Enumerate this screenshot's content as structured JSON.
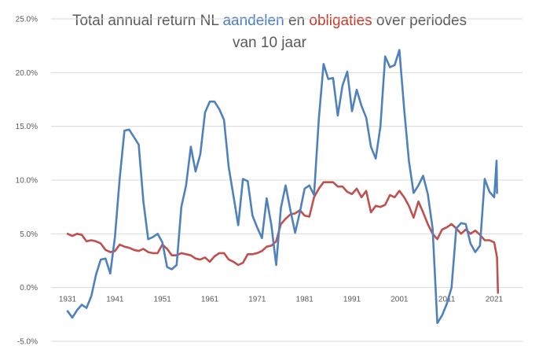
{
  "title": {
    "part1": "Total annual return NL ",
    "series1_word": "aandelen",
    "part2": " en ",
    "series2_word": "obligaties",
    "part3": " over periodes",
    "line2": "van 10 jaar"
  },
  "colors": {
    "aandelen": "#4f81bd",
    "obligaties": "#c0504d",
    "grid": "#d9d9d9",
    "axis_text": "#595959"
  },
  "chart_data": {
    "type": "line",
    "title": "Total annual return NL aandelen en obligaties over periodes van 10 jaar",
    "xlabel": "",
    "ylabel": "",
    "xlim": [
      1931,
      2021
    ],
    "ylim": [
      -5,
      25
    ],
    "grid": true,
    "y_ticks": [
      {
        "value": -5,
        "label": "-5.0%"
      },
      {
        "value": 0,
        "label": "0.0%"
      },
      {
        "value": 5,
        "label": "5.0%"
      },
      {
        "value": 10,
        "label": "10.0%"
      },
      {
        "value": 15,
        "label": "15.0%"
      },
      {
        "value": 20,
        "label": "20.0%"
      },
      {
        "value": 25,
        "label": "25.0%"
      }
    ],
    "x_ticks": [
      {
        "value": 1931,
        "label": "1931"
      },
      {
        "value": 1941,
        "label": "1941"
      },
      {
        "value": 1951,
        "label": "1951"
      },
      {
        "value": 1961,
        "label": "1961"
      },
      {
        "value": 1971,
        "label": "1971"
      },
      {
        "value": 1981,
        "label": "1981"
      },
      {
        "value": 1991,
        "label": "1991"
      },
      {
        "value": 2001,
        "label": "2001"
      },
      {
        "value": 2011,
        "label": "2011"
      },
      {
        "value": 2021,
        "label": "2021"
      }
    ],
    "series": [
      {
        "name": "aandelen",
        "points": [
          [
            1931,
            -2.2
          ],
          [
            1932,
            -2.8
          ],
          [
            1933,
            -2.1
          ],
          [
            1934,
            -1.6
          ],
          [
            1935,
            -1.9
          ],
          [
            1936,
            -0.8
          ],
          [
            1937,
            1.2
          ],
          [
            1938,
            2.6
          ],
          [
            1939,
            2.7
          ],
          [
            1940,
            1.3
          ],
          [
            1941,
            4.7
          ],
          [
            1942,
            10.2
          ],
          [
            1943,
            14.6
          ],
          [
            1944,
            14.7
          ],
          [
            1945,
            14.0
          ],
          [
            1946,
            13.3
          ],
          [
            1947,
            8.0
          ],
          [
            1948,
            4.5
          ],
          [
            1949,
            4.7
          ],
          [
            1950,
            5.0
          ],
          [
            1951,
            4.2
          ],
          [
            1952,
            1.9
          ],
          [
            1953,
            1.7
          ],
          [
            1954,
            2.1
          ],
          [
            1955,
            7.5
          ],
          [
            1956,
            9.5
          ],
          [
            1957,
            13.1
          ],
          [
            1958,
            10.8
          ],
          [
            1959,
            12.4
          ],
          [
            1960,
            16.3
          ],
          [
            1961,
            17.3
          ],
          [
            1962,
            17.3
          ],
          [
            1963,
            16.6
          ],
          [
            1964,
            15.6
          ],
          [
            1965,
            11.2
          ],
          [
            1966,
            8.5
          ],
          [
            1967,
            5.8
          ],
          [
            1968,
            10.1
          ],
          [
            1969,
            9.9
          ],
          [
            1970,
            6.7
          ],
          [
            1971,
            5.6
          ],
          [
            1972,
            4.6
          ],
          [
            1973,
            8.3
          ],
          [
            1974,
            5.8
          ],
          [
            1975,
            2.1
          ],
          [
            1976,
            7.4
          ],
          [
            1977,
            9.5
          ],
          [
            1978,
            7.2
          ],
          [
            1979,
            5.1
          ],
          [
            1980,
            7.0
          ],
          [
            1981,
            9.2
          ],
          [
            1982,
            9.5
          ],
          [
            1983,
            8.6
          ],
          [
            1984,
            15.7
          ],
          [
            1985,
            20.8
          ],
          [
            1986,
            19.4
          ],
          [
            1987,
            19.5
          ],
          [
            1988,
            16.0
          ],
          [
            1989,
            18.8
          ],
          [
            1990,
            20.1
          ],
          [
            1991,
            16.4
          ],
          [
            1992,
            18.4
          ],
          [
            1993,
            16.9
          ],
          [
            1994,
            15.8
          ],
          [
            1995,
            13.1
          ],
          [
            1996,
            12.0
          ],
          [
            1997,
            15.0
          ],
          [
            1998,
            21.5
          ],
          [
            1999,
            20.5
          ],
          [
            2000,
            20.7
          ],
          [
            2001,
            22.1
          ],
          [
            2002,
            16.6
          ],
          [
            2003,
            11.8
          ],
          [
            2004,
            8.8
          ],
          [
            2005,
            9.5
          ],
          [
            2006,
            10.4
          ],
          [
            2007,
            8.7
          ],
          [
            2008,
            5.5
          ],
          [
            2009,
            -3.3
          ],
          [
            2010,
            -2.6
          ],
          [
            2011,
            -1.5
          ],
          [
            2012,
            0.0
          ],
          [
            2013,
            5.5
          ],
          [
            2014,
            6.0
          ],
          [
            2015,
            5.9
          ],
          [
            2016,
            4.1
          ],
          [
            2017,
            3.3
          ],
          [
            2018,
            3.9
          ],
          [
            2019,
            10.1
          ],
          [
            2020,
            8.9
          ],
          [
            2021,
            8.4
          ],
          [
            2021.5,
            11.8
          ],
          [
            2021.6,
            8.8
          ]
        ]
      },
      {
        "name": "obligaties",
        "points": [
          [
            1931,
            5.0
          ],
          [
            1932,
            4.8
          ],
          [
            1933,
            5.0
          ],
          [
            1934,
            4.9
          ],
          [
            1935,
            4.3
          ],
          [
            1936,
            4.4
          ],
          [
            1937,
            4.3
          ],
          [
            1938,
            4.1
          ],
          [
            1939,
            3.5
          ],
          [
            1940,
            3.3
          ],
          [
            1941,
            3.4
          ],
          [
            1942,
            4.0
          ],
          [
            1943,
            3.8
          ],
          [
            1944,
            3.7
          ],
          [
            1945,
            3.5
          ],
          [
            1946,
            3.4
          ],
          [
            1947,
            3.6
          ],
          [
            1948,
            3.3
          ],
          [
            1949,
            3.2
          ],
          [
            1950,
            3.2
          ],
          [
            1951,
            4.0
          ],
          [
            1952,
            3.6
          ],
          [
            1953,
            3.0
          ],
          [
            1954,
            3.0
          ],
          [
            1955,
            3.2
          ],
          [
            1956,
            3.1
          ],
          [
            1957,
            3.0
          ],
          [
            1958,
            2.7
          ],
          [
            1959,
            2.6
          ],
          [
            1960,
            2.8
          ],
          [
            1961,
            2.4
          ],
          [
            1962,
            2.9
          ],
          [
            1963,
            3.2
          ],
          [
            1964,
            3.2
          ],
          [
            1965,
            2.6
          ],
          [
            1966,
            2.4
          ],
          [
            1967,
            2.1
          ],
          [
            1968,
            2.3
          ],
          [
            1969,
            3.1
          ],
          [
            1970,
            3.1
          ],
          [
            1971,
            3.2
          ],
          [
            1972,
            3.4
          ],
          [
            1973,
            3.8
          ],
          [
            1974,
            3.9
          ],
          [
            1975,
            4.3
          ],
          [
            1976,
            5.9
          ],
          [
            1977,
            6.4
          ],
          [
            1978,
            6.8
          ],
          [
            1979,
            6.9
          ],
          [
            1980,
            7.2
          ],
          [
            1981,
            6.7
          ],
          [
            1982,
            6.6
          ],
          [
            1983,
            8.4
          ],
          [
            1984,
            9.2
          ],
          [
            1985,
            9.8
          ],
          [
            1986,
            9.8
          ],
          [
            1987,
            9.8
          ],
          [
            1988,
            9.4
          ],
          [
            1989,
            9.4
          ],
          [
            1990,
            8.9
          ],
          [
            1991,
            8.7
          ],
          [
            1992,
            9.2
          ],
          [
            1993,
            8.4
          ],
          [
            1994,
            9.0
          ],
          [
            1995,
            7.0
          ],
          [
            1996,
            7.6
          ],
          [
            1997,
            7.5
          ],
          [
            1998,
            7.7
          ],
          [
            1999,
            8.6
          ],
          [
            2000,
            8.4
          ],
          [
            2001,
            9.0
          ],
          [
            2002,
            8.4
          ],
          [
            2003,
            7.6
          ],
          [
            2004,
            6.5
          ],
          [
            2005,
            8.0
          ],
          [
            2006,
            7.0
          ],
          [
            2007,
            5.9
          ],
          [
            2008,
            5.0
          ],
          [
            2009,
            4.5
          ],
          [
            2010,
            5.4
          ],
          [
            2011,
            5.6
          ],
          [
            2012,
            5.9
          ],
          [
            2013,
            5.5
          ],
          [
            2014,
            5.0
          ],
          [
            2015,
            5.4
          ],
          [
            2016,
            5.0
          ],
          [
            2017,
            5.3
          ],
          [
            2018,
            4.9
          ],
          [
            2019,
            4.4
          ],
          [
            2020,
            4.4
          ],
          [
            2021,
            4.2
          ],
          [
            2021.6,
            2.8
          ],
          [
            2021.8,
            -0.5
          ]
        ]
      }
    ]
  }
}
